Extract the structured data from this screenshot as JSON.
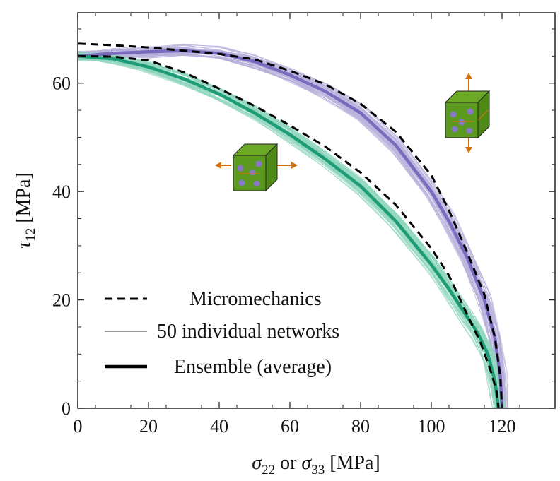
{
  "chart_data": {
    "type": "line",
    "xlabel": "σ22 or σ33 [MPa]",
    "ylabel": "τ12 [MPa]",
    "xlim": [
      0,
      135
    ],
    "ylim": [
      0,
      73
    ],
    "xticks": [
      0,
      20,
      40,
      60,
      80,
      100,
      120
    ],
    "yticks": [
      0,
      20,
      40,
      60
    ],
    "grid": false,
    "legend_position": "bottom-left",
    "legend": [
      {
        "label": "Micromechanics",
        "style": "dashed"
      },
      {
        "label": "50 individual networks",
        "style": "thin"
      },
      {
        "label": "Ensemble (average)",
        "style": "thick"
      }
    ],
    "colors": {
      "purple": "#7b6bbf",
      "purple_light": "#b9b2dc",
      "green": "#1e9c78",
      "green_light": "#8fd6bd",
      "dashed": "#000000",
      "cube_face": "#5b9a1f",
      "arrow": "#d4700c",
      "dots": "#8878c8"
    },
    "series": [
      {
        "name": "Ensemble (average)",
        "loading": "σ33",
        "color": "purple",
        "x": [
          0,
          10,
          20,
          30,
          40,
          50,
          60,
          70,
          80,
          90,
          100,
          105,
          110,
          115,
          118,
          119.5,
          120
        ],
        "y": [
          65,
          65.5,
          65.8,
          66,
          65.5,
          64,
          61.5,
          58.5,
          54.5,
          48.5,
          40,
          34.5,
          28,
          20,
          13,
          6,
          0
        ]
      },
      {
        "name": "Ensemble (average)",
        "loading": "σ22",
        "color": "green",
        "x": [
          0,
          10,
          20,
          30,
          40,
          50,
          60,
          70,
          80,
          90,
          100,
          105,
          110,
          113,
          116,
          118,
          119
        ],
        "y": [
          65,
          64.5,
          63,
          60.8,
          58,
          54.5,
          50.5,
          46,
          41,
          34.5,
          26.5,
          22,
          17,
          14,
          10,
          5,
          0
        ]
      },
      {
        "name": "Micromechanics",
        "loading": "σ33",
        "color": "dashed",
        "x": [
          0,
          10,
          20,
          30,
          40,
          50,
          60,
          70,
          80,
          90,
          100,
          105,
          110,
          115,
          118,
          119.5,
          120
        ],
        "y": [
          67.3,
          67,
          66.6,
          66,
          65.4,
          64.4,
          62.3,
          59.8,
          56.2,
          51,
          43,
          36.5,
          29,
          21,
          13,
          6,
          0
        ]
      },
      {
        "name": "Micromechanics",
        "loading": "σ22",
        "color": "dashed",
        "x": [
          0,
          10,
          20,
          30,
          40,
          50,
          60,
          70,
          80,
          90,
          100,
          105,
          110,
          114,
          117,
          118.5,
          119
        ],
        "y": [
          65,
          64.9,
          64.2,
          62,
          59,
          55.8,
          52.2,
          48.3,
          43.5,
          37.5,
          29.5,
          24.5,
          17.5,
          12,
          6.5,
          3,
          0
        ]
      }
    ],
    "individual_networks_count": 50
  }
}
